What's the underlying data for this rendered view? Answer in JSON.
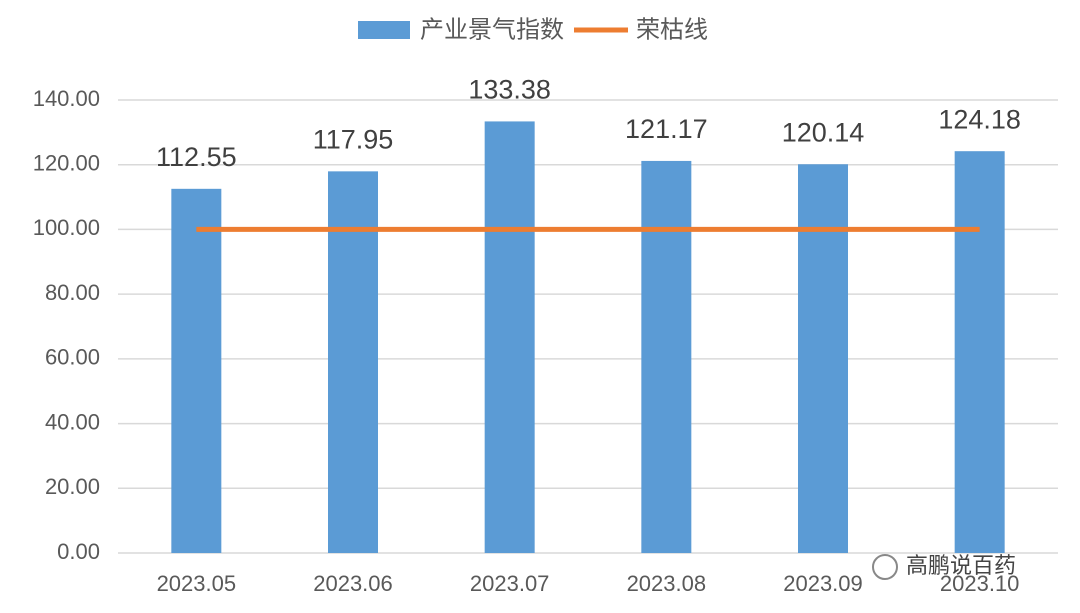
{
  "chart_data": {
    "type": "bar",
    "categories": [
      "2023.05",
      "2023.06",
      "2023.07",
      "2023.08",
      "2023.09",
      "2023.10"
    ],
    "series": [
      {
        "name": "产业景气指数",
        "type": "bar",
        "color": "#5b9bd5",
        "values": [
          112.55,
          117.95,
          133.38,
          121.17,
          120.14,
          124.18
        ]
      },
      {
        "name": "荣枯线",
        "type": "line",
        "color": "#ed7d31",
        "values": [
          100,
          100,
          100,
          100,
          100,
          100
        ]
      }
    ],
    "ylim": [
      0,
      140
    ],
    "yticks": [
      {
        "value": 0,
        "label": "0.00"
      },
      {
        "value": 20,
        "label": "20.00"
      },
      {
        "value": 40,
        "label": "40.00"
      },
      {
        "value": 60,
        "label": "60.00"
      },
      {
        "value": 80,
        "label": "80.00"
      },
      {
        "value": 100,
        "label": "100.00"
      },
      {
        "value": 120,
        "label": "120.00"
      },
      {
        "value": 140,
        "label": "140.00"
      }
    ],
    "grid": true,
    "legend": "top",
    "watermark": "高鹏说百药"
  }
}
